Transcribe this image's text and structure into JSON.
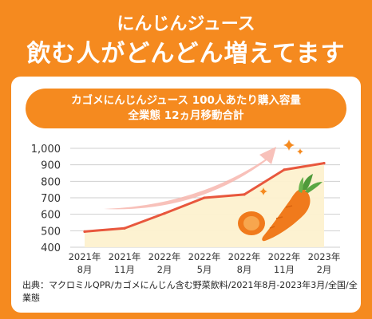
{
  "header": {
    "subtitle": "にんじんジュース",
    "headline": "飲む人がどんどん増えてます"
  },
  "chart_box": {
    "title_line1": "カゴメにんじんジュース 100人あたり購入容量",
    "title_line2": "全業態 12ヵ月移動合計"
  },
  "chart_data": {
    "type": "area",
    "title": "カゴメにんじんジュース 100人あたり購入容量 全業態 12ヵ月移動合計",
    "categories": [
      {
        "year": "2021年",
        "month": "8月"
      },
      {
        "year": "2021年",
        "month": "11月"
      },
      {
        "year": "2022年",
        "month": "2月"
      },
      {
        "year": "2022年",
        "month": "5月"
      },
      {
        "year": "2022年",
        "month": "8月"
      },
      {
        "year": "2022年",
        "month": "11月"
      },
      {
        "year": "2023年",
        "month": "2月"
      }
    ],
    "values": [
      495,
      515,
      605,
      700,
      720,
      870,
      910
    ],
    "yticks": [
      "400",
      "500",
      "600",
      "700",
      "800",
      "900",
      "1,000"
    ],
    "ylim": [
      400,
      1000
    ],
    "grid": true,
    "line_color": "#e8573d",
    "fill_color": "#fdf1cf"
  },
  "source": "出典：マクロミルQPR/カゴメにんじん含む野菜飲料/2021年8月-2023年3月/全国/全業態",
  "colors": {
    "background": "#f58a1f",
    "card": "#ffffff",
    "arrow": "#f7b6ae",
    "sparkle": "#f58a1f",
    "carrot": "#f07a1c"
  },
  "decorations": {
    "arrow": "trend-arrow",
    "sparkles": "sparkle-icon",
    "carrot": "carrot-icon"
  }
}
